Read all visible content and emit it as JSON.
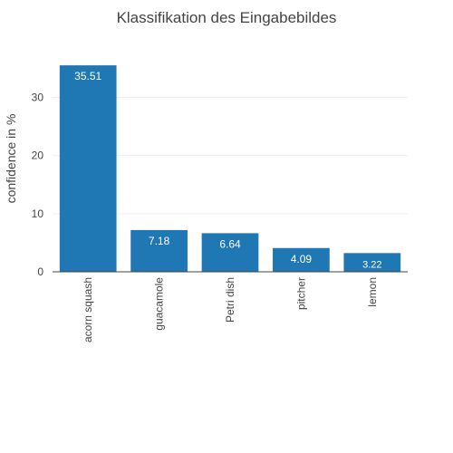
{
  "chart_data": {
    "type": "bar",
    "title": "Klassifikation des Eingabebildes",
    "xlabel": "",
    "ylabel": "confidence in %",
    "categories": [
      "acorn squash",
      "guacamole",
      "Petri dish",
      "pitcher",
      "lemon"
    ],
    "values": [
      35.51,
      7.18,
      6.64,
      4.09,
      3.22
    ],
    "data_labels": [
      "35.51",
      "7.18",
      "6.64",
      "4.09",
      "3.22"
    ],
    "y_ticks": [
      0,
      10,
      20,
      30
    ],
    "ylim": [
      0,
      37.4
    ],
    "grid": true,
    "legend": "none",
    "bar_color": "#1f77b4",
    "label_color": "#ffffff",
    "text_color": "#444444",
    "grid_color": "#eeeeee",
    "background": "#ffffff"
  }
}
